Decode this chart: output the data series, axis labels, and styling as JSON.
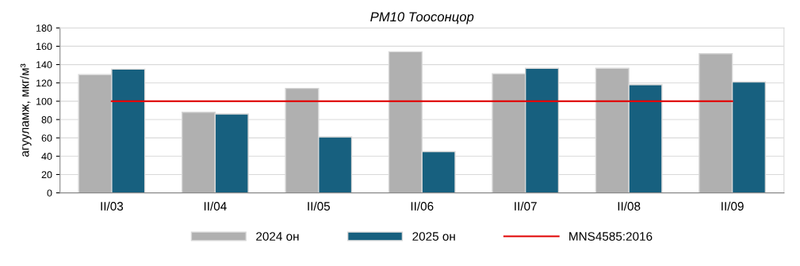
{
  "chart_data": {
    "type": "bar",
    "title": "PM10 Тоосонцор",
    "ylabel": "агууламж, мкг/м³",
    "categories": [
      "II/03",
      "II/04",
      "II/05",
      "II/06",
      "II/07",
      "II/08",
      "II/09"
    ],
    "series": [
      {
        "name": "2024 он",
        "color": "#b0b0b0",
        "values": [
          129,
          88,
          114,
          154,
          130,
          136,
          152
        ]
      },
      {
        "name": "2025 он",
        "color": "#17607f",
        "values": [
          135,
          86,
          61,
          45,
          136,
          118,
          121
        ]
      },
      {
        "name": "MNS4585:2016",
        "type": "line",
        "color": "#e00000",
        "values": [
          100,
          100,
          100,
          100,
          100,
          100,
          100
        ]
      }
    ],
    "ylim": [
      0,
      180
    ],
    "yticks": [
      0,
      20,
      40,
      60,
      80,
      100,
      120,
      140,
      160,
      180
    ],
    "grid": "y",
    "legend": "bottom",
    "marker": "none",
    "line_style": "solid"
  }
}
